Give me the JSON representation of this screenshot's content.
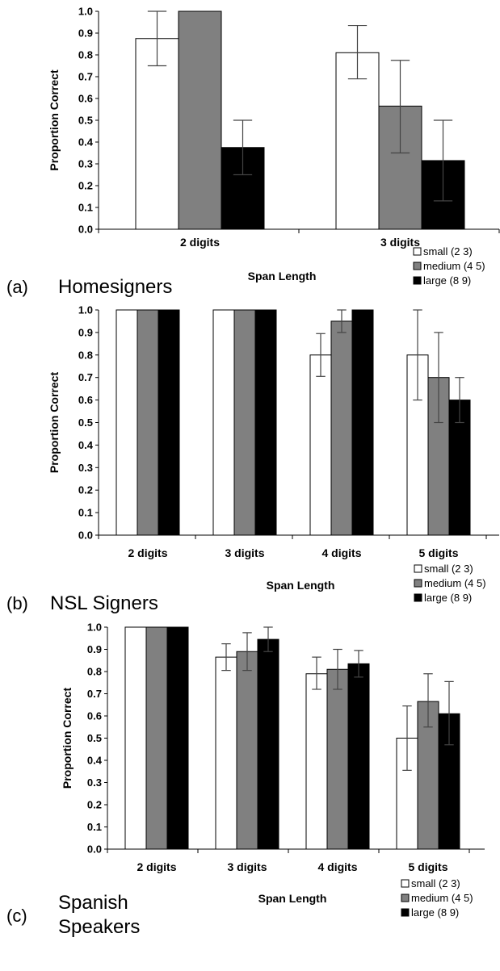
{
  "colors": {
    "small": "#ffffff",
    "medium": "#808080",
    "large": "#000000"
  },
  "chart_data": [
    {
      "type": "bar",
      "panel_label": "(a)",
      "panel_title": [
        "Homesigners"
      ],
      "categories": [
        "2 digits",
        "3 digits"
      ],
      "series": [
        {
          "name": "small (2 3)",
          "values": [
            0.875,
            0.81
          ],
          "err_low": [
            0.75,
            0.69
          ],
          "err_high": [
            1.0,
            0.935
          ]
        },
        {
          "name": "medium (4 5)",
          "values": [
            1.0,
            0.565
          ],
          "err_low": [
            1.0,
            0.35
          ],
          "err_high": [
            1.0,
            0.775
          ]
        },
        {
          "name": "large (8 9)",
          "values": [
            0.375,
            0.315
          ],
          "err_low": [
            0.25,
            0.13
          ],
          "err_high": [
            0.5,
            0.5
          ]
        }
      ],
      "xlabel": "Span Length",
      "ylabel": "Proportion Correct",
      "ylim": [
        0,
        1.0
      ],
      "yticks": [
        "1.0",
        "0.9",
        "0.8",
        "0.7",
        "0.6",
        "0.5",
        "0.4",
        "0.3",
        "0.2",
        "0.1",
        "0.0"
      ],
      "grid": false,
      "legend": "bottom-right"
    },
    {
      "type": "bar",
      "panel_label": "(b)",
      "panel_title": [
        "NSL Signers"
      ],
      "categories": [
        "2 digits",
        "3 digits",
        "4 digits",
        "5 digits"
      ],
      "series": [
        {
          "name": "small (2 3)",
          "values": [
            1.0,
            1.0,
            0.8,
            0.8
          ],
          "err_low": [
            1.0,
            1.0,
            0.705,
            0.6
          ],
          "err_high": [
            1.0,
            1.0,
            0.895,
            1.0
          ]
        },
        {
          "name": "medium (4 5)",
          "values": [
            1.0,
            1.0,
            0.95,
            0.7
          ],
          "err_low": [
            1.0,
            1.0,
            0.9,
            0.5
          ],
          "err_high": [
            1.0,
            1.0,
            1.0,
            0.9
          ]
        },
        {
          "name": "large (8 9)",
          "values": [
            1.0,
            1.0,
            1.0,
            0.6
          ],
          "err_low": [
            1.0,
            1.0,
            1.0,
            0.5
          ],
          "err_high": [
            1.0,
            1.0,
            1.0,
            0.7
          ]
        }
      ],
      "xlabel": "Span Length",
      "ylabel": "Proportion Correct",
      "ylim": [
        0,
        1.0
      ],
      "yticks": [
        "1.0",
        "0.9",
        "0.8",
        "0.7",
        "0.6",
        "0.5",
        "0.4",
        "0.3",
        "0.2",
        "0.1",
        "0.0"
      ],
      "grid": false,
      "legend": "bottom-right"
    },
    {
      "type": "bar",
      "panel_label": "(c)",
      "panel_title": [
        "Spanish",
        "Speakers"
      ],
      "categories": [
        "2 digits",
        "3 digits",
        "4 digits",
        "5 digits"
      ],
      "series": [
        {
          "name": "small (2 3)",
          "values": [
            1.0,
            0.865,
            0.79,
            0.5
          ],
          "err_low": [
            1.0,
            0.805,
            0.72,
            0.355
          ],
          "err_high": [
            1.0,
            0.925,
            0.865,
            0.645
          ]
        },
        {
          "name": "medium (4 5)",
          "values": [
            1.0,
            0.89,
            0.81,
            0.665
          ],
          "err_low": [
            1.0,
            0.805,
            0.72,
            0.55
          ],
          "err_high": [
            1.0,
            0.975,
            0.9,
            0.79
          ]
        },
        {
          "name": "large (8 9)",
          "values": [
            1.0,
            0.945,
            0.835,
            0.61
          ],
          "err_low": [
            1.0,
            0.89,
            0.775,
            0.47
          ],
          "err_high": [
            1.0,
            1.0,
            0.895,
            0.755
          ]
        }
      ],
      "xlabel": "Span Length",
      "ylabel": "Proportion Correct",
      "ylim": [
        0,
        1.0
      ],
      "yticks": [
        "1.0",
        "0.9",
        "0.8",
        "0.7",
        "0.6",
        "0.5",
        "0.4",
        "0.3",
        "0.2",
        "0.1",
        "0.0"
      ],
      "grid": false,
      "legend": "bottom-right"
    }
  ]
}
